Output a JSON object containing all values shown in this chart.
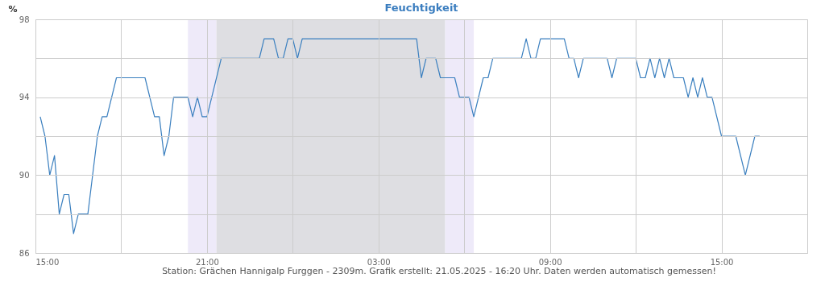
{
  "chart_data": {
    "type": "line",
    "title": "Feuchtigkeit",
    "ylabel": "%",
    "annotations": [
      "Station: Grächen Hannigalp Furggen - 2309m. Grafik erstellt: 21.05.2025 - 16:20 Uhr. Daten werden automatisch gemessen!"
    ],
    "x": [
      "2025-05-20T15:10",
      "2025-05-20T15:20",
      "2025-05-20T15:30",
      "2025-05-20T15:40",
      "2025-05-20T15:50",
      "2025-05-20T16:00",
      "2025-05-20T16:10",
      "2025-05-20T16:20",
      "2025-05-20T16:30",
      "2025-05-20T16:50",
      "2025-05-20T17:10",
      "2025-05-20T17:20",
      "2025-05-20T17:30",
      "2025-05-20T17:50",
      "2025-05-20T18:50",
      "2025-05-20T19:10",
      "2025-05-20T19:20",
      "2025-05-20T19:30",
      "2025-05-20T19:40",
      "2025-05-20T19:50",
      "2025-05-20T20:20",
      "2025-05-20T20:30",
      "2025-05-20T20:40",
      "2025-05-20T20:50",
      "2025-05-20T21:00",
      "2025-05-20T21:30",
      "2025-05-20T22:50",
      "2025-05-20T23:00",
      "2025-05-20T23:20",
      "2025-05-20T23:30",
      "2025-05-20T23:40",
      "2025-05-20T23:50",
      "2025-05-21T00:00",
      "2025-05-21T00:10",
      "2025-05-21T00:20",
      "2025-05-21T04:20",
      "2025-05-21T04:30",
      "2025-05-21T04:40",
      "2025-05-21T05:00",
      "2025-05-21T05:10",
      "2025-05-21T05:40",
      "2025-05-21T05:50",
      "2025-05-21T06:10",
      "2025-05-21T06:20",
      "2025-05-21T06:40",
      "2025-05-21T06:50",
      "2025-05-21T07:00",
      "2025-05-21T08:00",
      "2025-05-21T08:10",
      "2025-05-21T08:20",
      "2025-05-21T08:30",
      "2025-05-21T08:40",
      "2025-05-21T09:30",
      "2025-05-21T09:40",
      "2025-05-21T09:50",
      "2025-05-21T10:00",
      "2025-05-21T10:10",
      "2025-05-21T11:00",
      "2025-05-21T11:10",
      "2025-05-21T11:20",
      "2025-05-21T12:00",
      "2025-05-21T12:10",
      "2025-05-21T12:20",
      "2025-05-21T12:30",
      "2025-05-21T12:40",
      "2025-05-21T12:50",
      "2025-05-21T13:00",
      "2025-05-21T13:10",
      "2025-05-21T13:20",
      "2025-05-21T13:40",
      "2025-05-21T13:50",
      "2025-05-21T14:00",
      "2025-05-21T14:10",
      "2025-05-21T14:20",
      "2025-05-21T14:30",
      "2025-05-21T14:40",
      "2025-05-21T15:00",
      "2025-05-21T15:30",
      "2025-05-21T15:50",
      "2025-05-21T16:10",
      "2025-05-21T16:20"
    ],
    "series": [
      {
        "color": "#3a7fbf",
        "values": [
          93,
          92,
          90,
          91,
          88,
          89,
          89,
          87,
          88,
          88,
          92,
          93,
          93,
          95,
          95,
          93,
          93,
          91,
          92,
          94,
          94,
          93,
          94,
          93,
          93,
          96,
          96,
          97,
          97,
          96,
          96,
          97,
          97,
          96,
          97,
          97,
          95,
          96,
          96,
          95,
          95,
          94,
          94,
          93,
          95,
          95,
          96,
          96,
          97,
          96,
          96,
          97,
          97,
          96,
          96,
          95,
          96,
          96,
          95,
          96,
          96,
          95,
          95,
          96,
          95,
          96,
          95,
          96,
          95,
          95,
          94,
          95,
          94,
          95,
          94,
          94,
          92,
          92,
          90,
          92,
          92
        ]
      }
    ],
    "xlim": [
      "2025-05-20T15:00",
      "2025-05-21T18:00"
    ],
    "xticks": [
      {
        "value": "2025-05-20T15:00",
        "label": "15:00"
      },
      {
        "value": "2025-05-20T18:00",
        "label": null
      },
      {
        "value": "2025-05-20T21:00",
        "label": "21:00"
      },
      {
        "value": "2025-05-21T00:00",
        "label": null
      },
      {
        "value": "2025-05-21T03:00",
        "label": "03:00"
      },
      {
        "value": "2025-05-21T06:00",
        "label": null
      },
      {
        "value": "2025-05-21T09:00",
        "label": "09:00"
      },
      {
        "value": "2025-05-21T12:00",
        "label": null
      },
      {
        "value": "2025-05-21T15:00",
        "label": "15:00"
      },
      {
        "value": "2025-05-21T18:00",
        "label": null
      }
    ],
    "ylim": [
      86,
      98
    ],
    "yticks": [
      86,
      {
        "value": 88,
        "label": null
      },
      90,
      {
        "value": 92,
        "label": null
      },
      94,
      {
        "value": 96,
        "label": null
      },
      98
    ],
    "bands": [
      {
        "axis": "x",
        "from": "2025-05-20T20:20",
        "to": "2025-05-20T21:20",
        "color": "#eeeaf9"
      },
      {
        "axis": "x",
        "from": "2025-05-20T21:20",
        "to": "2025-05-21T05:20",
        "color": "#dedee2"
      },
      {
        "axis": "x",
        "from": "2025-05-21T05:20",
        "to": "2025-05-21T06:20",
        "color": "#eeeaf9"
      }
    ],
    "grid": true,
    "marker": "none",
    "line_style": "solid"
  }
}
